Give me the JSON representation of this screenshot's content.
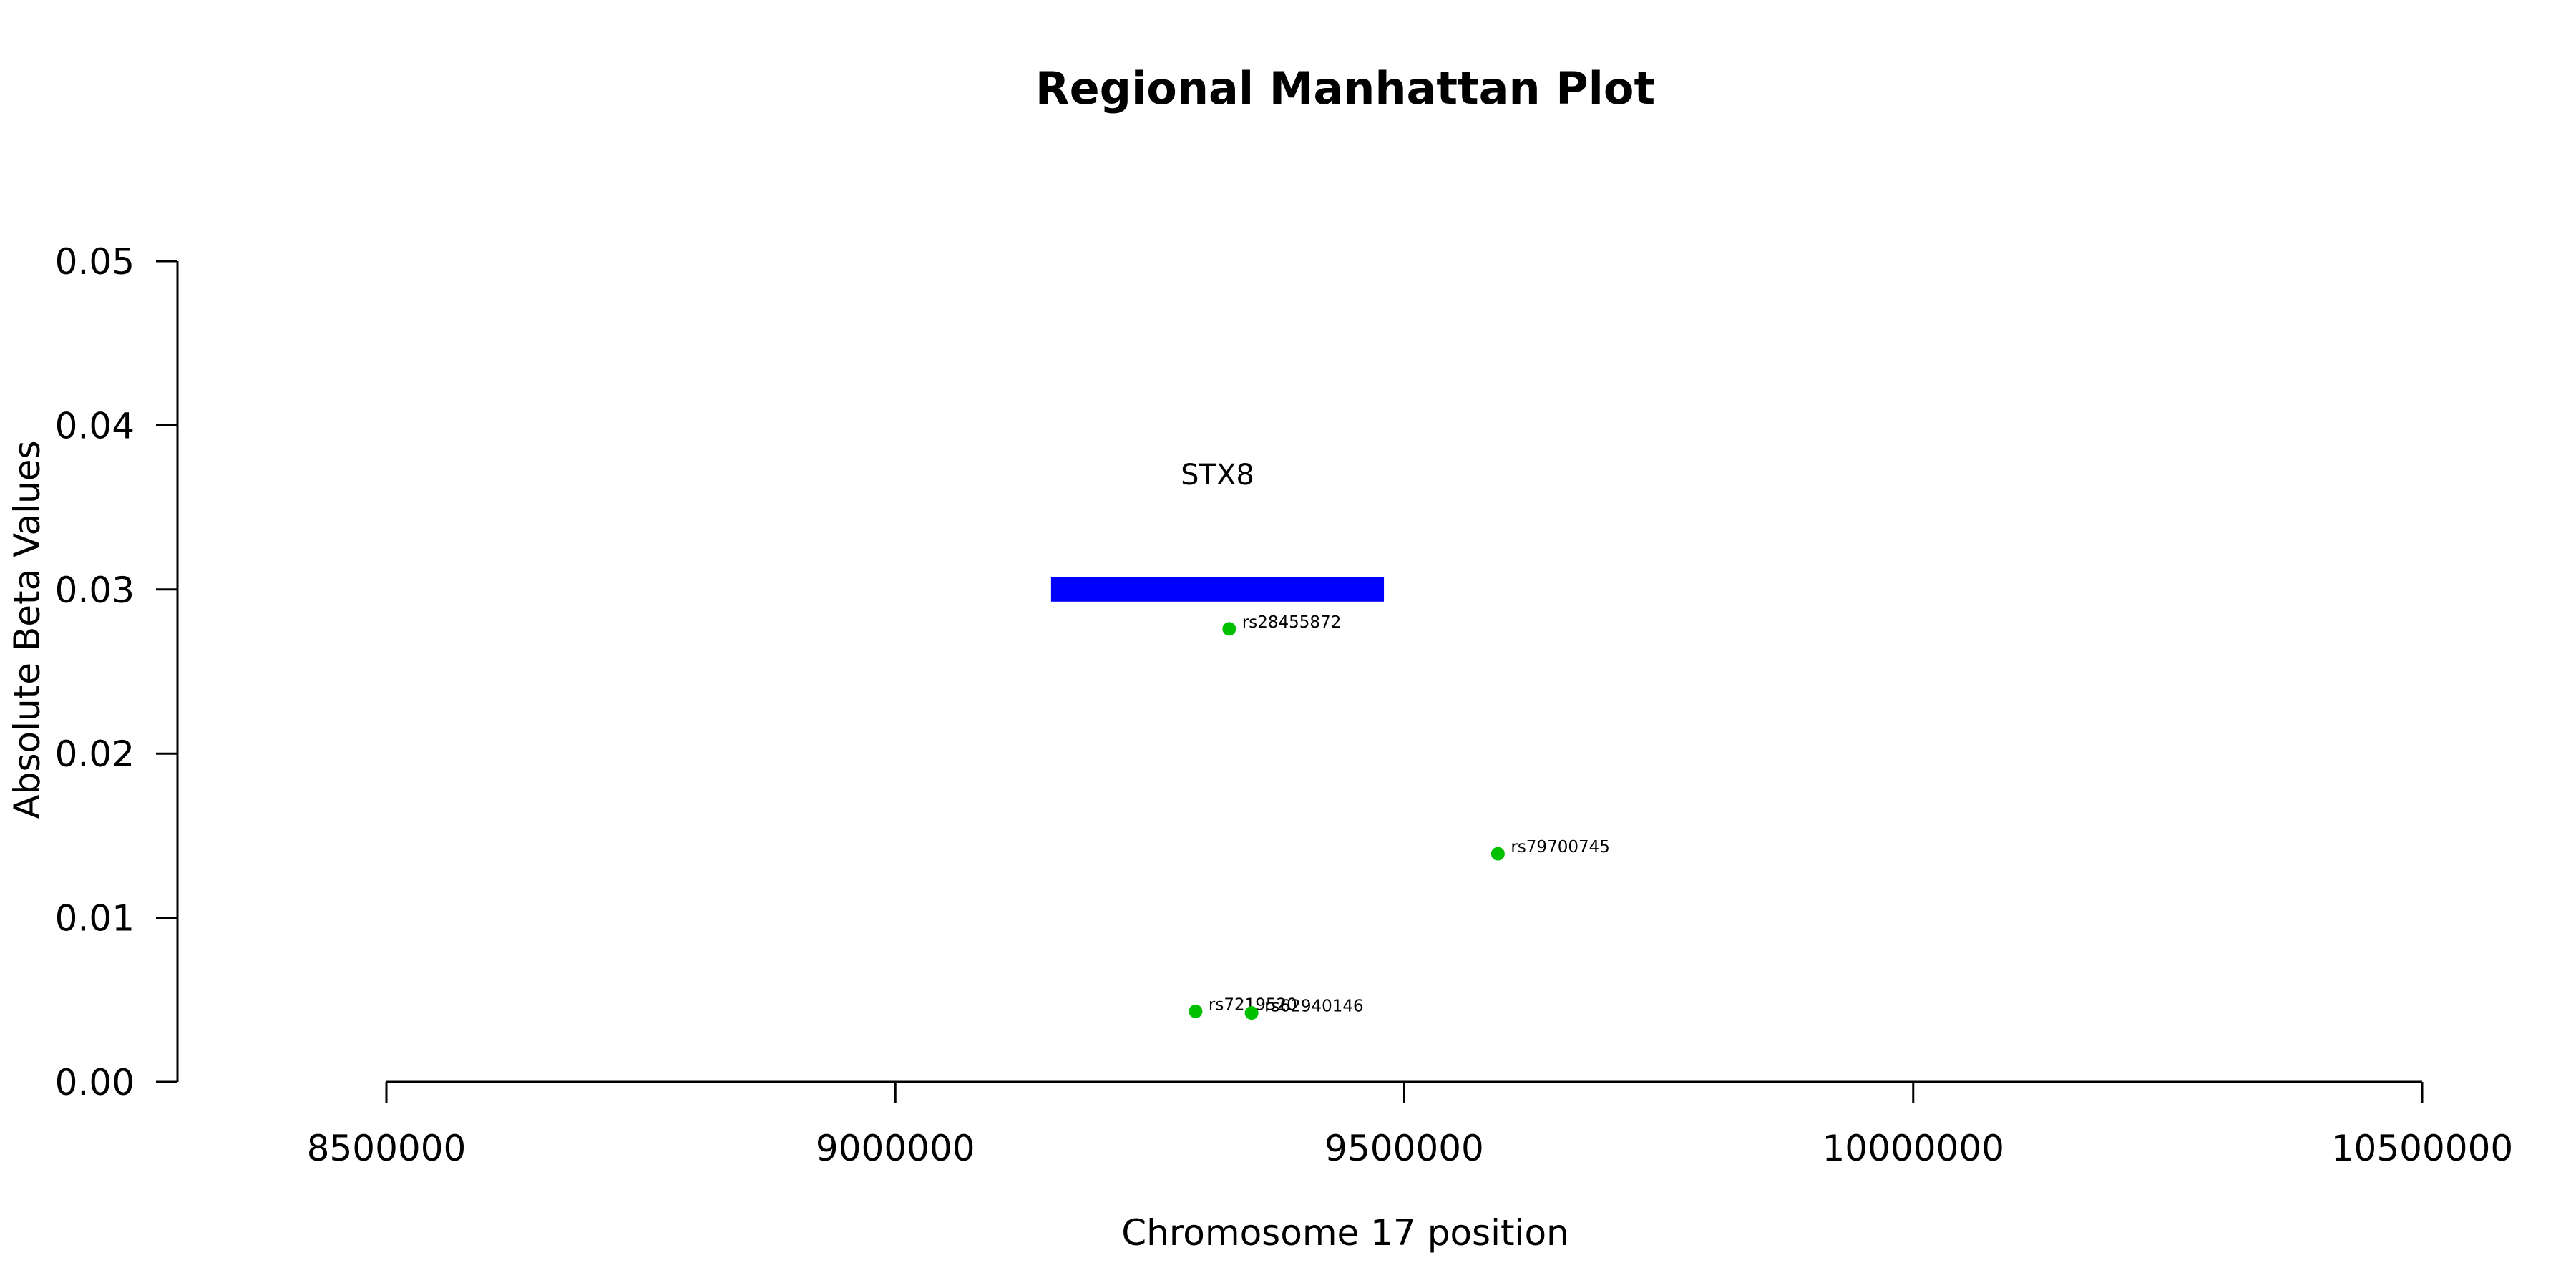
{
  "chart_data": {
    "type": "scatter",
    "title": "Regional Manhattan Plot",
    "xlabel": "Chromosome 17 position",
    "ylabel": "Absolute Beta Values",
    "xlim": [
      8500000,
      10500000
    ],
    "ylim": [
      0,
      0.05
    ],
    "x_ticks": [
      8500000,
      9000000,
      9500000,
      10000000,
      10500000
    ],
    "x_tick_labels": [
      "8500000",
      "9000000",
      "9500000",
      "10000000",
      "10500000"
    ],
    "y_ticks": [
      0,
      0.01,
      0.02,
      0.03,
      0.04,
      0.05
    ],
    "y_tick_labels": [
      "0.00",
      "0.01",
      "0.02",
      "0.03",
      "0.04",
      "0.05"
    ],
    "grid": false,
    "point_color": "#00c000",
    "gene_color": "#0000ff",
    "genes": [
      {
        "name": "STX8",
        "start": 9153000,
        "end": 9480000,
        "y": 0.03,
        "label_y": 0.037
      }
    ],
    "points": [
      {
        "label": "rs28455872",
        "x": 9328000,
        "y": 0.0276
      },
      {
        "label": "rs79700745",
        "x": 9592000,
        "y": 0.0139
      },
      {
        "label": "rs7219520",
        "x": 9295000,
        "y": 0.0043
      },
      {
        "label": "rs62940146",
        "x": 9350000,
        "y": 0.0042
      }
    ]
  }
}
